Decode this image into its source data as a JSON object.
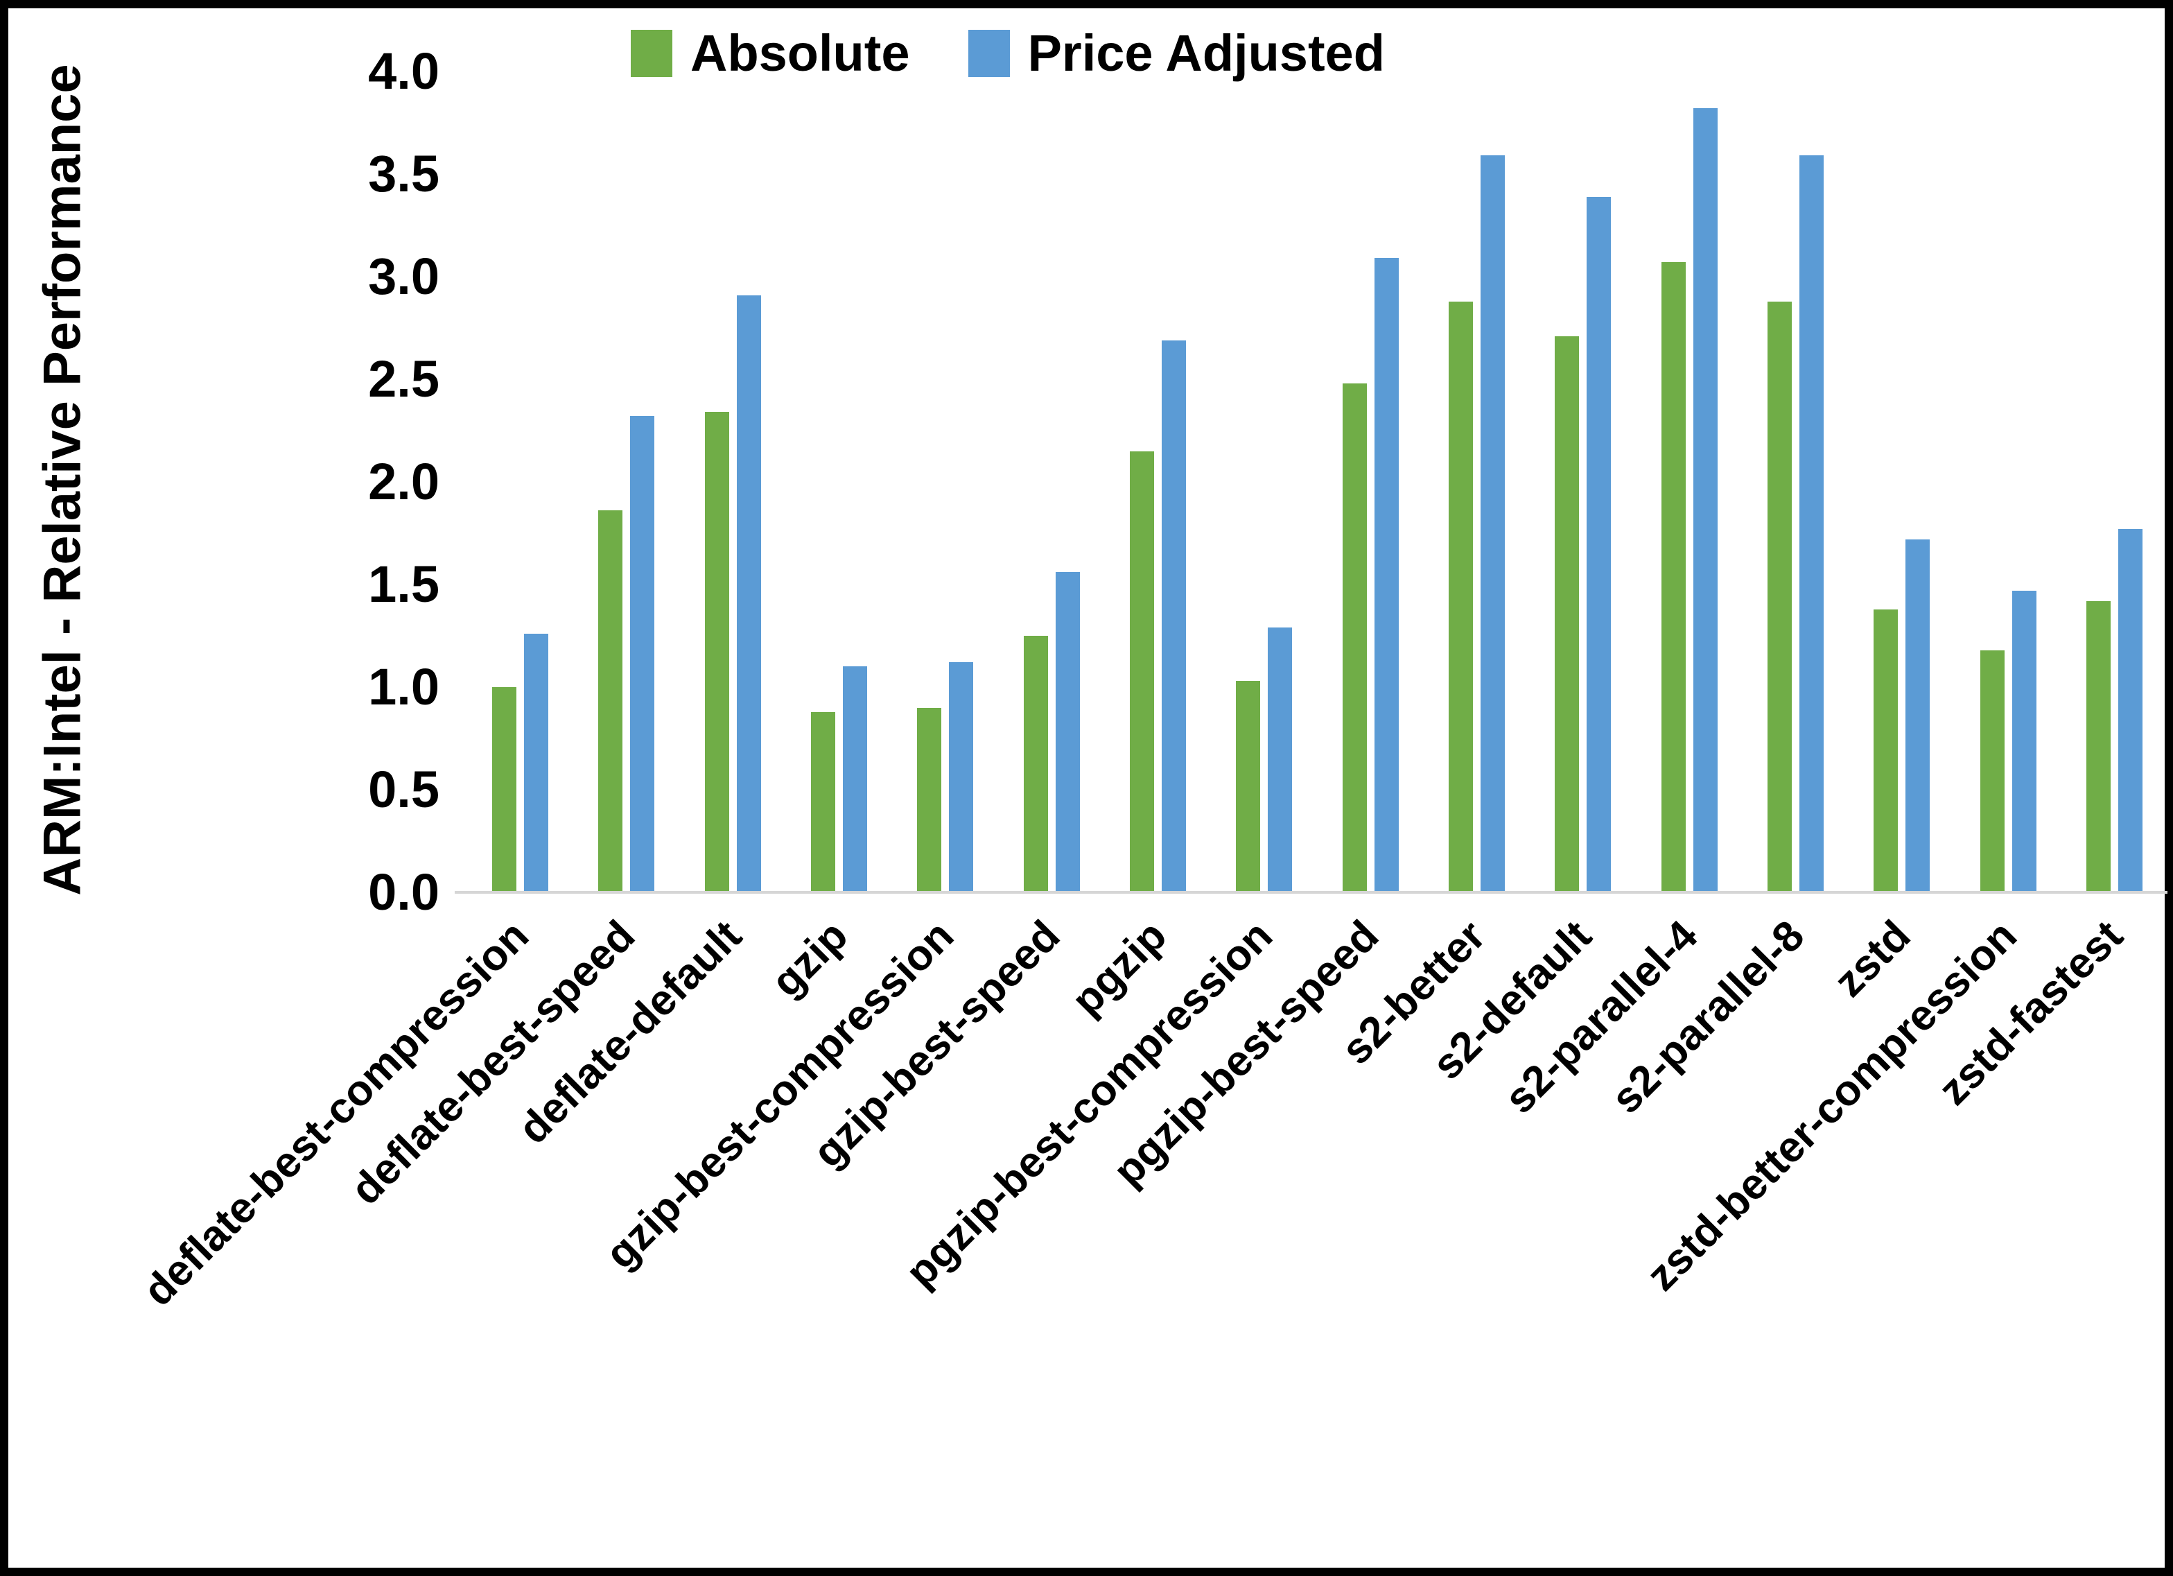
{
  "figure": {
    "background": "#ffffff",
    "border_color": "#000000",
    "axis_line_color": "#d6d6d6"
  },
  "legend": {
    "items": [
      {
        "label": "Absolute",
        "color": "#70AD47"
      },
      {
        "label": "Price Adjusted",
        "color": "#5B9BD5"
      }
    ]
  },
  "y_axis": {
    "title": "ARM:Intel - Relative Performance",
    "tick_labels": [
      "4.0",
      "3.5",
      "3.0",
      "2.5",
      "2.0",
      "1.5",
      "1.0",
      "0.5",
      "0.0"
    ]
  },
  "chart_data": {
    "type": "bar",
    "title": "",
    "xlabel": "",
    "ylabel": "ARM:Intel - Relative Performance",
    "ylim": [
      0,
      4
    ],
    "ytick_step": 0.5,
    "grid": false,
    "legend_position": "top-center",
    "categories": [
      "deflate-best-compression",
      "deflate-best-speed",
      "deflate-default",
      "gzip",
      "gzip-best-compression",
      "gzip-best-speed",
      "pgzip",
      "pgzip-best-compression",
      "pgzip-best-speed",
      "s2-better",
      "s2-default",
      "s2-parallel-4",
      "s2-parallel-8",
      "zstd",
      "zstd-better-compression",
      "zstd-fastest"
    ],
    "series": [
      {
        "name": "Absolute",
        "color": "#70AD47",
        "values": [
          1.0,
          1.86,
          2.34,
          0.88,
          0.9,
          1.25,
          2.15,
          1.03,
          2.48,
          2.88,
          2.71,
          3.07,
          2.88,
          1.38,
          1.18,
          1.42
        ]
      },
      {
        "name": "Price Adjusted",
        "color": "#5B9BD5",
        "values": [
          1.26,
          2.32,
          2.91,
          1.1,
          1.12,
          1.56,
          2.69,
          1.29,
          3.09,
          3.59,
          3.39,
          3.82,
          3.59,
          1.72,
          1.47,
          1.77
        ]
      }
    ]
  }
}
